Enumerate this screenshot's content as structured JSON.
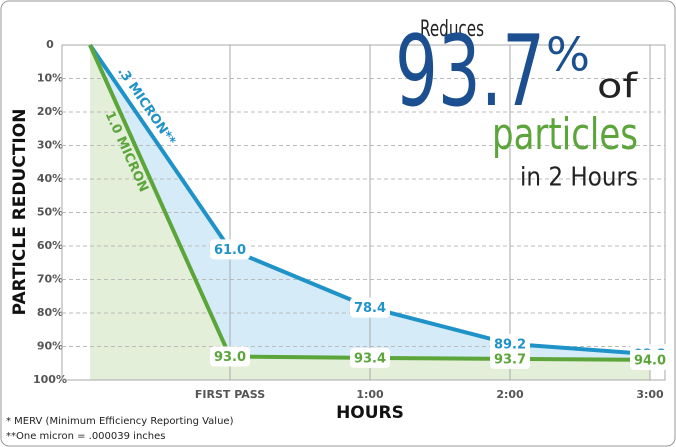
{
  "chart_data": {
    "type": "line",
    "y_label": "PARTICLE REDUCTION",
    "x_label": "HOURS",
    "categories": [
      null,
      "FIRST PASS",
      "1:00",
      "2:00",
      "3:00"
    ],
    "series": [
      {
        "name": ".3 MICRON**",
        "color": "#1f93c8",
        "area_color": "#d6ebf8",
        "values": [
          0,
          61.0,
          78.4,
          89.2,
          92.3
        ],
        "value_labels": [
          null,
          "61.0",
          "78.4",
          "89.2",
          "92.3"
        ]
      },
      {
        "name": "1.0 MICRON",
        "color": "#5ba53b",
        "area_color": "#e4efd9",
        "values": [
          0,
          93.0,
          93.4,
          93.7,
          94.0
        ],
        "value_labels": [
          null,
          "93.0",
          "93.4",
          "93.7",
          "94.0"
        ]
      }
    ],
    "ylim": [
      0,
      100
    ],
    "y_inverted": true,
    "yticks": [
      0,
      {
        "value": 10,
        "label": "10%"
      },
      {
        "value": 20,
        "label": "20%"
      },
      {
        "value": 30,
        "label": "30%"
      },
      {
        "value": 40,
        "label": "40%"
      },
      {
        "value": 50,
        "label": "50%"
      },
      {
        "value": 60,
        "label": "60%"
      },
      {
        "value": 70,
        "label": "70%"
      },
      {
        "value": 80,
        "label": "80%"
      },
      {
        "value": 90,
        "label": "90%"
      },
      {
        "value": 100,
        "label": "100%"
      }
    ],
    "grid": true,
    "annotation": {
      "reduces": "Reduces",
      "number": "93.7",
      "percent": "%",
      "of": "of",
      "particles": "particles",
      "time": "in 2 Hours"
    },
    "footnotes": [
      "* MERV (Minimum Efficiency Reporting Value)",
      "**One micron = .000039 inches"
    ]
  }
}
